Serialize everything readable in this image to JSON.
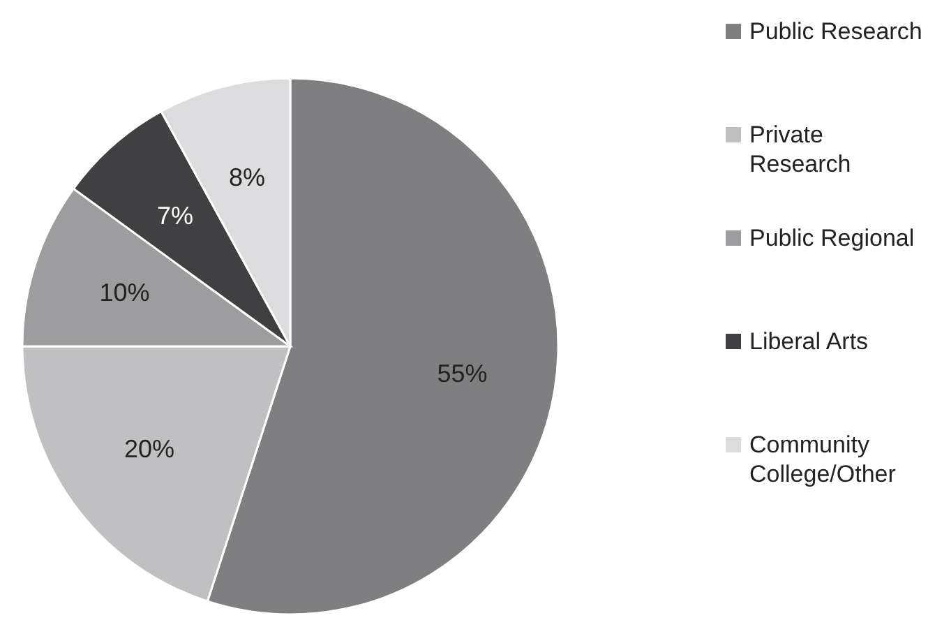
{
  "chart_data": {
    "type": "pie",
    "categories": [
      "Public Research",
      "Private Research",
      "Public Regional",
      "Liberal Arts",
      "Community College/Other"
    ],
    "values": [
      55,
      20,
      10,
      7,
      8
    ],
    "value_labels": [
      "55%",
      "20%",
      "10%",
      "7%",
      "8%"
    ],
    "colors": [
      "#7f7f81",
      "#c0c0c2",
      "#9d9d9f",
      "#404042",
      "#dcdcde"
    ],
    "legend": "right"
  }
}
